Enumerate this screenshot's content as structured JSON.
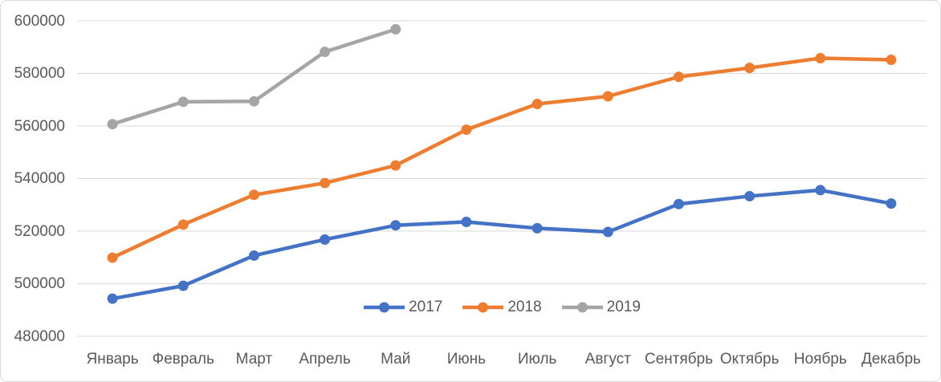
{
  "chart_data": {
    "type": "line",
    "title": "",
    "xlabel": "",
    "ylabel": "",
    "categories": [
      "Январь",
      "Февраль",
      "Март",
      "Апрель",
      "Май",
      "Июнь",
      "Июль",
      "Август",
      "Сентябрь",
      "Октябрь",
      "Ноябрь",
      "Декабрь"
    ],
    "series": [
      {
        "name": "2017",
        "color": "#4472C4",
        "values": [
          494300,
          499200,
          510700,
          516800,
          522200,
          523500,
          521100,
          519700,
          530300,
          533300,
          535600,
          530500
        ]
      },
      {
        "name": "2018",
        "color": "#ED7D31",
        "values": [
          509900,
          522500,
          533800,
          538300,
          545000,
          558600,
          568400,
          571300,
          578700,
          582100,
          585800,
          585200
        ]
      },
      {
        "name": "2019",
        "color": "#A5A5A5",
        "values": [
          560700,
          569200,
          569400,
          588200,
          596800
        ]
      }
    ],
    "ylim": [
      480000,
      600000
    ],
    "yticks": [
      480000,
      500000,
      520000,
      540000,
      560000,
      580000,
      600000
    ],
    "grid": true,
    "gridline_color": "#D9D9D9",
    "axis_text_color": "#595959",
    "background_color": "#FFFFFF",
    "border_color": "#D9D9D9",
    "legend_position": "bottom-center",
    "legend_entries": [
      "2017",
      "2018",
      "2019"
    ],
    "marker": "circle",
    "line_width": 4.5,
    "marker_radius": 6.5
  }
}
